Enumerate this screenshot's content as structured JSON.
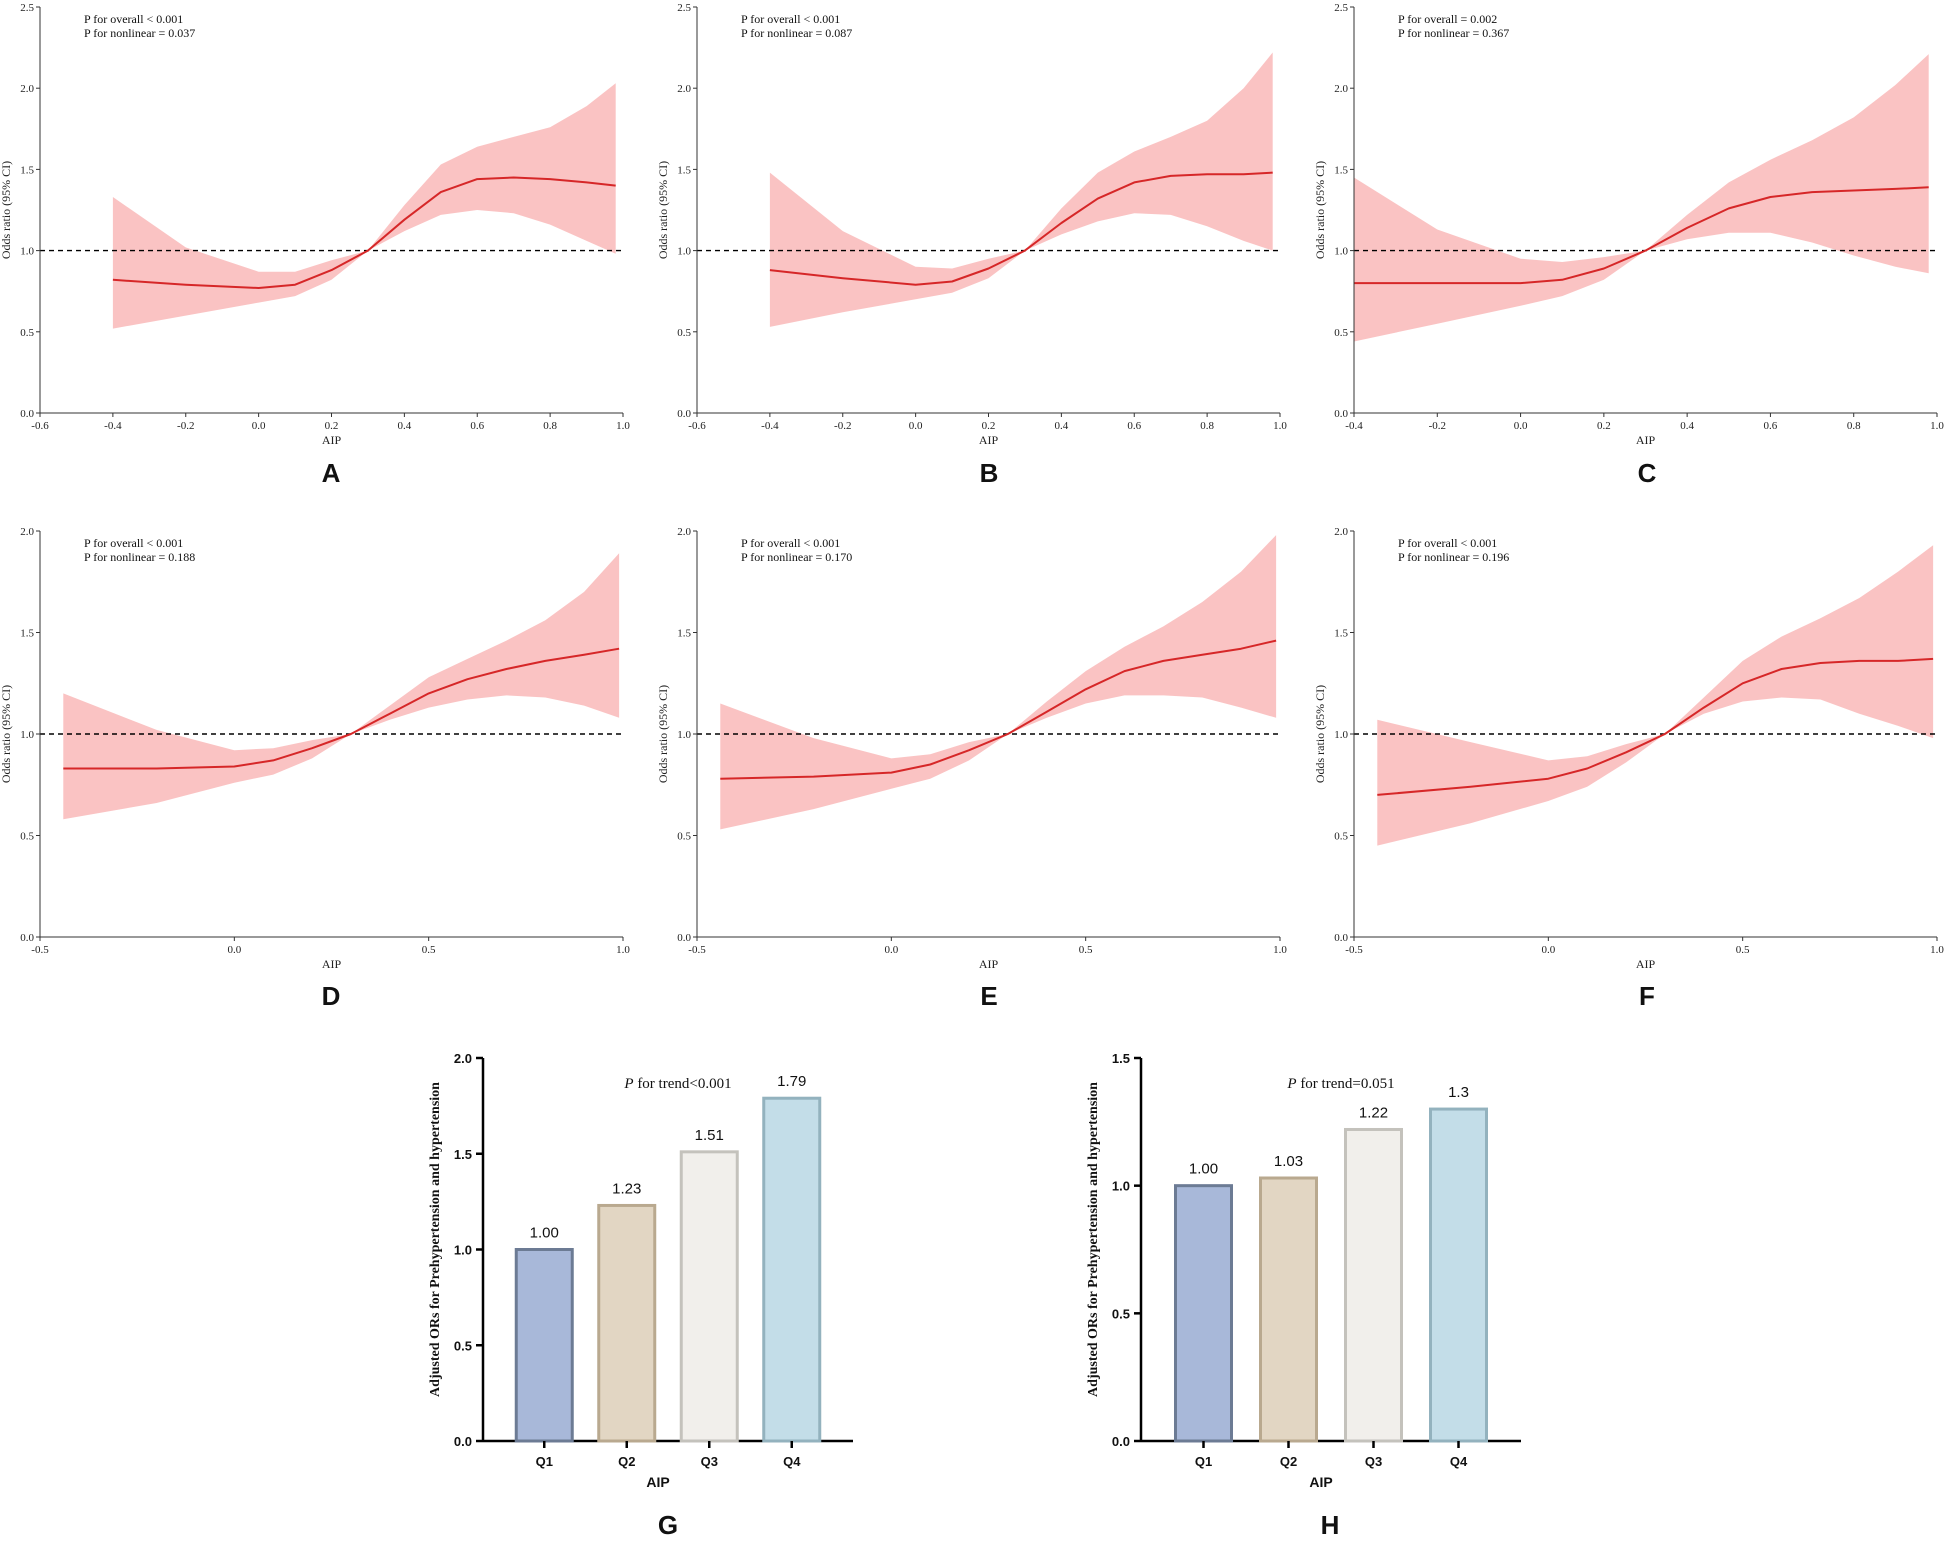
{
  "colors": {
    "curve": "#d62728",
    "band": "#f9b8b8",
    "axis": "#333333",
    "refline": "#000000"
  },
  "chart_data": [
    {
      "panel": "A",
      "type": "line",
      "title": "",
      "xlabel": "AIP",
      "ylabel": "Odds ratio (95% CI)",
      "xlim": [
        -0.6,
        1.0
      ],
      "ylim": [
        0,
        2.5
      ],
      "xticks": [
        -0.6,
        -0.4,
        -0.2,
        0.0,
        0.2,
        0.4,
        0.6,
        0.8,
        1.0
      ],
      "xtick_labels": [
        "-0.6",
        "-0.4",
        "-0.2",
        "0.0",
        "0.2",
        "0.4",
        "0.6",
        "0.8",
        "1.0"
      ],
      "yticks": [
        0,
        0.5,
        1.0,
        1.5,
        2.0,
        2.5
      ],
      "ytick_labels": [
        "0.0",
        "0.5",
        "1.0",
        "1.5",
        "2.0",
        "2.5"
      ],
      "reference_line": 1.0,
      "annotations": [
        "P for overall < 0.001",
        "P for nonlinear = 0.037"
      ],
      "series": [
        {
          "name": "OR",
          "x": [
            -0.4,
            -0.2,
            0.0,
            0.1,
            0.2,
            0.3,
            0.4,
            0.5,
            0.6,
            0.7,
            0.8,
            0.9,
            0.98
          ],
          "values": [
            0.82,
            0.79,
            0.77,
            0.79,
            0.88,
            1.0,
            1.19,
            1.36,
            1.44,
            1.45,
            1.44,
            1.42,
            1.4
          ]
        },
        {
          "name": "Lower 95% CI",
          "x": [
            -0.4,
            -0.2,
            0.0,
            0.1,
            0.2,
            0.3,
            0.4,
            0.5,
            0.6,
            0.7,
            0.8,
            0.9,
            0.98
          ],
          "values": [
            0.52,
            0.6,
            0.68,
            0.72,
            0.82,
            1.0,
            1.12,
            1.22,
            1.25,
            1.23,
            1.16,
            1.06,
            0.98
          ]
        },
        {
          "name": "Upper 95% CI",
          "x": [
            -0.4,
            -0.2,
            0.0,
            0.1,
            0.2,
            0.3,
            0.4,
            0.5,
            0.6,
            0.7,
            0.8,
            0.9,
            0.98
          ],
          "values": [
            1.33,
            1.02,
            0.87,
            0.87,
            0.94,
            1.0,
            1.28,
            1.53,
            1.64,
            1.7,
            1.76,
            1.89,
            2.03
          ]
        }
      ]
    },
    {
      "panel": "B",
      "type": "line",
      "title": "",
      "xlabel": "AIP",
      "ylabel": "Odds ratio (95% CI)",
      "xlim": [
        -0.6,
        1.0
      ],
      "ylim": [
        0,
        2.5
      ],
      "xticks": [
        -0.6,
        -0.4,
        -0.2,
        0.0,
        0.2,
        0.4,
        0.6,
        0.8,
        1.0
      ],
      "xtick_labels": [
        "-0.6",
        "-0.4",
        "-0.2",
        "0.0",
        "0.2",
        "0.4",
        "0.6",
        "0.8",
        "1.0"
      ],
      "yticks": [
        0,
        0.5,
        1.0,
        1.5,
        2.0,
        2.5
      ],
      "ytick_labels": [
        "0.0",
        "0.5",
        "1.0",
        "1.5",
        "2.0",
        "2.5"
      ],
      "reference_line": 1.0,
      "annotations": [
        "P for overall < 0.001",
        "P for nonlinear = 0.087"
      ],
      "series": [
        {
          "name": "OR",
          "x": [
            -0.4,
            -0.2,
            0.0,
            0.1,
            0.2,
            0.3,
            0.4,
            0.5,
            0.6,
            0.7,
            0.8,
            0.9,
            0.98
          ],
          "values": [
            0.88,
            0.83,
            0.79,
            0.81,
            0.89,
            1.0,
            1.17,
            1.32,
            1.42,
            1.46,
            1.47,
            1.47,
            1.48
          ]
        },
        {
          "name": "Lower 95% CI",
          "x": [
            -0.4,
            -0.2,
            0.0,
            0.1,
            0.2,
            0.3,
            0.4,
            0.5,
            0.6,
            0.7,
            0.8,
            0.9,
            0.98
          ],
          "values": [
            0.53,
            0.62,
            0.7,
            0.74,
            0.83,
            1.0,
            1.1,
            1.18,
            1.23,
            1.22,
            1.15,
            1.06,
            1.0
          ]
        },
        {
          "name": "Upper 95% CI",
          "x": [
            -0.4,
            -0.2,
            0.0,
            0.1,
            0.2,
            0.3,
            0.4,
            0.5,
            0.6,
            0.7,
            0.8,
            0.9,
            0.98
          ],
          "values": [
            1.48,
            1.12,
            0.9,
            0.89,
            0.95,
            1.0,
            1.26,
            1.48,
            1.61,
            1.7,
            1.8,
            2.0,
            2.22
          ]
        }
      ]
    },
    {
      "panel": "C",
      "type": "line",
      "title": "",
      "xlabel": "AIP",
      "ylabel": "Odds ratio (95% CI)",
      "xlim": [
        -0.4,
        1.0
      ],
      "ylim": [
        0,
        2.5
      ],
      "xticks": [
        -0.4,
        -0.2,
        0.0,
        0.2,
        0.4,
        0.6,
        0.8,
        1.0
      ],
      "xtick_labels": [
        "-0.4",
        "-0.2",
        "0.0",
        "0.2",
        "0.4",
        "0.6",
        "0.8",
        "1.0"
      ],
      "yticks": [
        0,
        0.5,
        1.0,
        1.5,
        2.0,
        2.5
      ],
      "ytick_labels": [
        "0.0",
        "0.5",
        "1.0",
        "1.5",
        "2.0",
        "2.5"
      ],
      "reference_line": 1.0,
      "annotations": [
        "P for overall = 0.002",
        "P for nonlinear = 0.367"
      ],
      "series": [
        {
          "name": "OR",
          "x": [
            -0.4,
            -0.2,
            0.0,
            0.1,
            0.2,
            0.3,
            0.4,
            0.5,
            0.6,
            0.7,
            0.8,
            0.9,
            0.98
          ],
          "values": [
            0.8,
            0.8,
            0.8,
            0.82,
            0.89,
            1.0,
            1.14,
            1.26,
            1.33,
            1.36,
            1.37,
            1.38,
            1.39
          ]
        },
        {
          "name": "Lower 95% CI",
          "x": [
            -0.4,
            -0.2,
            0.0,
            0.1,
            0.2,
            0.3,
            0.4,
            0.5,
            0.6,
            0.7,
            0.8,
            0.9,
            0.98
          ],
          "values": [
            0.44,
            0.55,
            0.66,
            0.72,
            0.82,
            1.0,
            1.07,
            1.11,
            1.11,
            1.05,
            0.97,
            0.9,
            0.86
          ]
        },
        {
          "name": "Upper 95% CI",
          "x": [
            -0.4,
            -0.2,
            0.0,
            0.1,
            0.2,
            0.3,
            0.4,
            0.5,
            0.6,
            0.7,
            0.8,
            0.9,
            0.98
          ],
          "values": [
            1.45,
            1.13,
            0.95,
            0.93,
            0.96,
            1.0,
            1.22,
            1.42,
            1.56,
            1.68,
            1.82,
            2.02,
            2.21
          ]
        }
      ]
    },
    {
      "panel": "D",
      "type": "line",
      "title": "",
      "xlabel": "AIP",
      "ylabel": "Odds ratio (95% CI)",
      "xlim": [
        -0.5,
        1.0
      ],
      "ylim": [
        0,
        2.0
      ],
      "xticks": [
        -0.5,
        0.0,
        0.5,
        1.0
      ],
      "xtick_labels": [
        "-0.5",
        "0.0",
        "0.5",
        "1.0"
      ],
      "yticks": [
        0,
        0.5,
        1.0,
        1.5,
        2.0
      ],
      "ytick_labels": [
        "0.0",
        "0.5",
        "1.0",
        "1.5",
        "2.0"
      ],
      "reference_line": 1.0,
      "annotations": [
        "P for overall < 0.001",
        "P for nonlinear = 0.188"
      ],
      "series": [
        {
          "name": "OR",
          "x": [
            -0.44,
            -0.2,
            0.0,
            0.1,
            0.2,
            0.3,
            0.4,
            0.5,
            0.6,
            0.7,
            0.8,
            0.9,
            0.99
          ],
          "values": [
            0.83,
            0.83,
            0.84,
            0.87,
            0.93,
            1.0,
            1.1,
            1.2,
            1.27,
            1.32,
            1.36,
            1.39,
            1.42
          ]
        },
        {
          "name": "Lower 95% CI",
          "x": [
            -0.44,
            -0.2,
            0.0,
            0.1,
            0.2,
            0.3,
            0.4,
            0.5,
            0.6,
            0.7,
            0.8,
            0.9,
            0.99
          ],
          "values": [
            0.58,
            0.66,
            0.76,
            0.8,
            0.88,
            1.0,
            1.07,
            1.13,
            1.17,
            1.19,
            1.18,
            1.14,
            1.08
          ]
        },
        {
          "name": "Upper 95% CI",
          "x": [
            -0.44,
            -0.2,
            0.0,
            0.1,
            0.2,
            0.3,
            0.4,
            0.5,
            0.6,
            0.7,
            0.8,
            0.9,
            0.99
          ],
          "values": [
            1.2,
            1.02,
            0.92,
            0.93,
            0.97,
            1.0,
            1.14,
            1.28,
            1.37,
            1.46,
            1.56,
            1.7,
            1.89
          ]
        }
      ]
    },
    {
      "panel": "E",
      "type": "line",
      "title": "",
      "xlabel": "AIP",
      "ylabel": "Odds ratio (95% CI)",
      "xlim": [
        -0.5,
        1.0
      ],
      "ylim": [
        0,
        2.0
      ],
      "xticks": [
        -0.5,
        0.0,
        0.5,
        1.0
      ],
      "xtick_labels": [
        "-0.5",
        "0.0",
        "0.5",
        "1.0"
      ],
      "yticks": [
        0,
        0.5,
        1.0,
        1.5,
        2.0
      ],
      "ytick_labels": [
        "0.0",
        "0.5",
        "1.0",
        "1.5",
        "2.0"
      ],
      "reference_line": 1.0,
      "annotations": [
        "P for overall < 0.001",
        "P for nonlinear = 0.170"
      ],
      "series": [
        {
          "name": "OR",
          "x": [
            -0.44,
            -0.2,
            0.0,
            0.1,
            0.2,
            0.3,
            0.4,
            0.5,
            0.6,
            0.7,
            0.8,
            0.9,
            0.99
          ],
          "values": [
            0.78,
            0.79,
            0.81,
            0.85,
            0.92,
            1.0,
            1.11,
            1.22,
            1.31,
            1.36,
            1.39,
            1.42,
            1.46
          ]
        },
        {
          "name": "Lower 95% CI",
          "x": [
            -0.44,
            -0.2,
            0.0,
            0.1,
            0.2,
            0.3,
            0.4,
            0.5,
            0.6,
            0.7,
            0.8,
            0.9,
            0.99
          ],
          "values": [
            0.53,
            0.63,
            0.73,
            0.78,
            0.87,
            1.0,
            1.08,
            1.15,
            1.19,
            1.19,
            1.18,
            1.13,
            1.08
          ]
        },
        {
          "name": "Upper 95% CI",
          "x": [
            -0.44,
            -0.2,
            0.0,
            0.1,
            0.2,
            0.3,
            0.4,
            0.5,
            0.6,
            0.7,
            0.8,
            0.9,
            0.99
          ],
          "values": [
            1.15,
            0.98,
            0.88,
            0.9,
            0.96,
            1.0,
            1.16,
            1.31,
            1.43,
            1.53,
            1.65,
            1.8,
            1.98
          ]
        }
      ]
    },
    {
      "panel": "F",
      "type": "line",
      "title": "",
      "xlabel": "AIP",
      "ylabel": "Odds ratio (95% CI)",
      "xlim": [
        -0.5,
        1.0
      ],
      "ylim": [
        0,
        2.0
      ],
      "xticks": [
        -0.5,
        0.0,
        0.5,
        1.0
      ],
      "xtick_labels": [
        "-0.5",
        "0.0",
        "0.5",
        "1.0"
      ],
      "yticks": [
        0,
        0.5,
        1.0,
        1.5,
        2.0
      ],
      "ytick_labels": [
        "0.0",
        "0.5",
        "1.0",
        "1.5",
        "2.0"
      ],
      "reference_line": 1.0,
      "annotations": [
        "P for overall < 0.001",
        "P for nonlinear = 0.196"
      ],
      "series": [
        {
          "name": "OR",
          "x": [
            -0.44,
            -0.2,
            0.0,
            0.1,
            0.2,
            0.3,
            0.4,
            0.5,
            0.6,
            0.7,
            0.8,
            0.9,
            0.99
          ],
          "values": [
            0.7,
            0.74,
            0.78,
            0.83,
            0.91,
            1.0,
            1.13,
            1.25,
            1.32,
            1.35,
            1.36,
            1.36,
            1.37
          ]
        },
        {
          "name": "Lower 95% CI",
          "x": [
            -0.44,
            -0.2,
            0.0,
            0.1,
            0.2,
            0.3,
            0.4,
            0.5,
            0.6,
            0.7,
            0.8,
            0.9,
            0.99
          ],
          "values": [
            0.45,
            0.56,
            0.67,
            0.74,
            0.86,
            1.0,
            1.1,
            1.16,
            1.18,
            1.17,
            1.1,
            1.04,
            0.98
          ]
        },
        {
          "name": "Upper 95% CI",
          "x": [
            -0.44,
            -0.2,
            0.0,
            0.1,
            0.2,
            0.3,
            0.4,
            0.5,
            0.6,
            0.7,
            0.8,
            0.9,
            0.99
          ],
          "values": [
            1.07,
            0.96,
            0.87,
            0.89,
            0.95,
            1.0,
            1.18,
            1.36,
            1.48,
            1.57,
            1.67,
            1.8,
            1.93
          ]
        }
      ]
    },
    {
      "panel": "G",
      "type": "bar",
      "title": "",
      "xlabel": "AIP",
      "ylabel": "Adjusted ORs for Prehypertension and hypertension",
      "categories": [
        "Q1",
        "Q2",
        "Q3",
        "Q4"
      ],
      "values": [
        1.0,
        1.23,
        1.51,
        1.79
      ],
      "value_labels": [
        "1.00",
        "1.23",
        "1.51",
        "1.79"
      ],
      "bar_colors": [
        "#a8b8d9",
        "#e2d6c3",
        "#f1efeb",
        "#c3dde8"
      ],
      "bar_edges": [
        "#6c7b94",
        "#b9a98f",
        "#c4c2bc",
        "#93b2be"
      ],
      "ylim": [
        0,
        2.0
      ],
      "yticks": [
        0,
        0.5,
        1.0,
        1.5,
        2.0
      ],
      "ytick_labels": [
        "0.0",
        "0.5",
        "1.0",
        "1.5",
        "2.0"
      ],
      "annotation_italic": "P",
      "annotation_text": " for trend<0.001"
    },
    {
      "panel": "H",
      "type": "bar",
      "title": "",
      "xlabel": "AIP",
      "ylabel": "Adjusted ORs for Prehypertension and hypertension",
      "categories": [
        "Q1",
        "Q2",
        "Q3",
        "Q4"
      ],
      "values": [
        1.0,
        1.03,
        1.22,
        1.3
      ],
      "value_labels": [
        "1.00",
        "1.03",
        "1.22",
        "1.3"
      ],
      "bar_colors": [
        "#a8b8d9",
        "#e2d6c3",
        "#f1efeb",
        "#c3dde8"
      ],
      "bar_edges": [
        "#6c7b94",
        "#b9a98f",
        "#c4c2bc",
        "#93b2be"
      ],
      "ylim": [
        0,
        1.5
      ],
      "yticks": [
        0,
        0.5,
        1.0,
        1.5
      ],
      "ytick_labels": [
        "0.0",
        "0.5",
        "1.0",
        "1.5"
      ],
      "annotation_italic": "P",
      "annotation_text": " for trend=0.051"
    }
  ]
}
